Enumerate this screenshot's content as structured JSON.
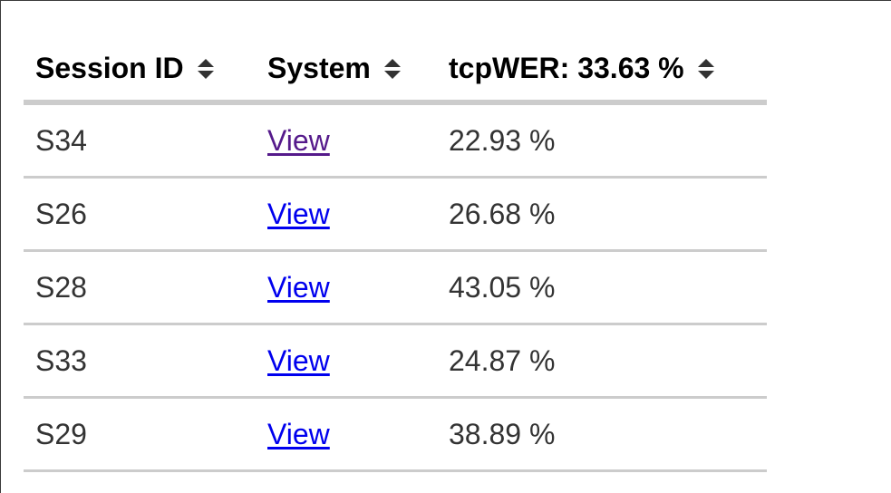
{
  "table": {
    "headers": {
      "session": "Session ID",
      "system": "System",
      "metric": "tcpWER: 33.63 %"
    },
    "sort_icon": "sort-up-down-icon",
    "rows": [
      {
        "session": "S34",
        "link": "View",
        "wer": "22.93 %",
        "visited": true
      },
      {
        "session": "S26",
        "link": "View",
        "wer": "26.68 %",
        "visited": false
      },
      {
        "session": "S28",
        "link": "View",
        "wer": "43.05 %",
        "visited": false
      },
      {
        "session": "S33",
        "link": "View",
        "wer": "24.87 %",
        "visited": false
      },
      {
        "session": "S29",
        "link": "View",
        "wer": "38.89 %",
        "visited": false
      }
    ]
  },
  "colors": {
    "visited_link": "#551a8b",
    "unvisited_link": "#0000ee",
    "row_border": "#cccccc",
    "cell_text": "#333333"
  }
}
